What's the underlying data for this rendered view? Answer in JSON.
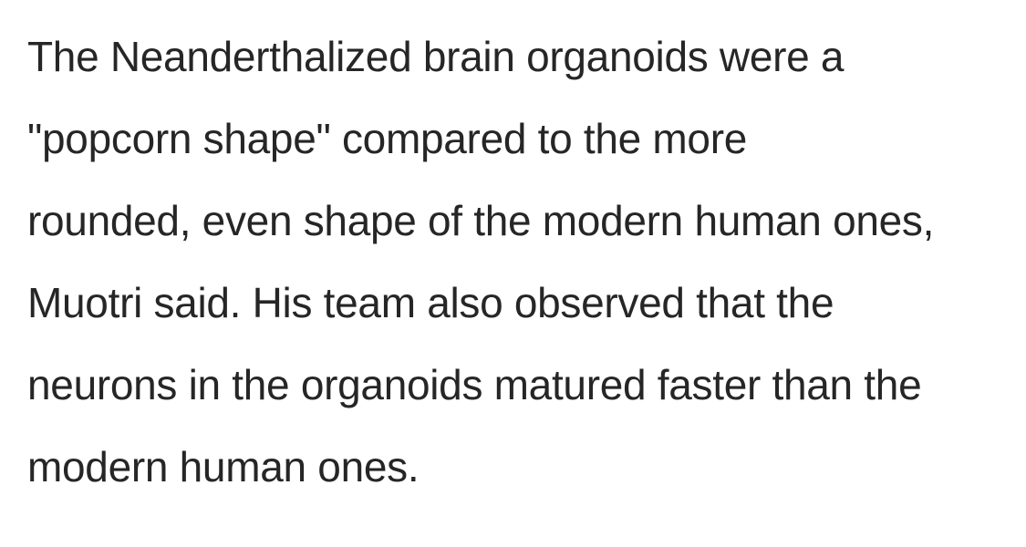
{
  "article": {
    "paragraph_lines": [
      "The Neanderthalized brain organoids were a",
      "\"popcorn shape\" compared to the more",
      "rounded, even shape of the modern human ones,",
      "Muotri said. His team also observed that the",
      "neurons in the organoids matured faster than the",
      "modern human ones."
    ]
  }
}
